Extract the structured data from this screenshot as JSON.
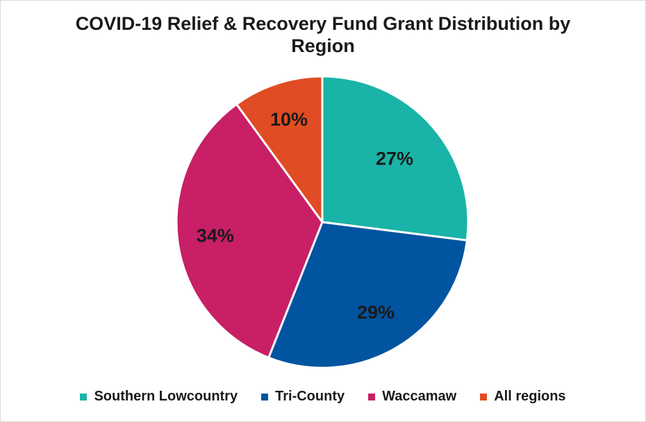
{
  "chart_data": {
    "type": "pie",
    "title": "COVID-19 Relief & Recovery Fund Grant Distribution by Region",
    "categories": [
      "Southern Lowcountry",
      "Tri-County",
      "Waccamaw",
      "All regions"
    ],
    "values": [
      27,
      29,
      34,
      10
    ],
    "labels": [
      "27%",
      "29%",
      "34%",
      "10%"
    ],
    "colors": [
      "#1ab3a8",
      "#0054a0",
      "#c81f66",
      "#e04c23"
    ],
    "start_angle_deg": 0,
    "direction": "clockwise",
    "legend_position": "bottom"
  }
}
